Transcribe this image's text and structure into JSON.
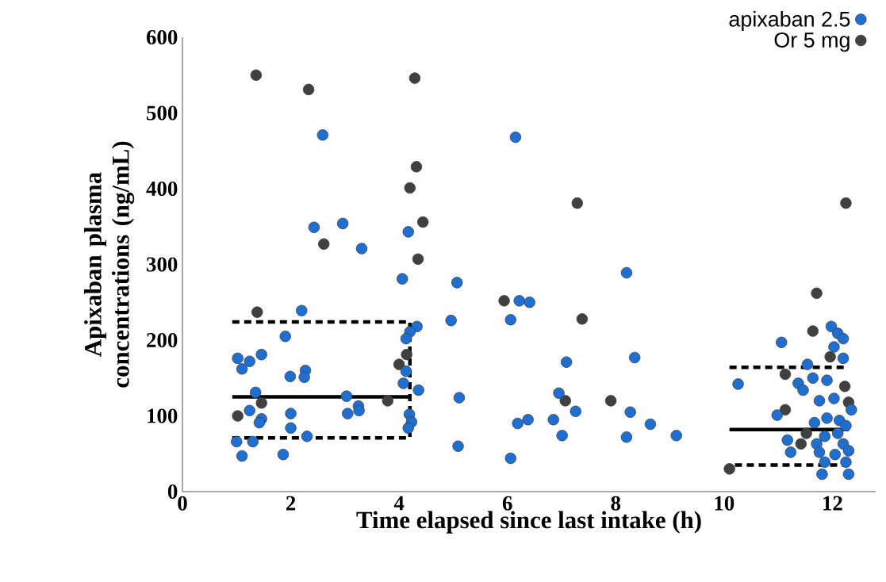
{
  "chart_data": {
    "type": "scatter",
    "xlabel": "Time elapsed since last intake (h)",
    "ylabel": "Apixaban plasma concentrations (ng/mL)",
    "xlim": [
      0,
      12.8
    ],
    "ylim": [
      0,
      600
    ],
    "xticks": [
      0,
      2,
      4,
      6,
      8,
      10,
      12
    ],
    "yticks": [
      0,
      100,
      200,
      300,
      400,
      500,
      600
    ],
    "grid": false,
    "legend": "top right",
    "series": [
      {
        "name": "Or 5 mg",
        "marker": "circle",
        "color": "#404040",
        "x": [
          1.36,
          2.33,
          4.29,
          4.32,
          4.2,
          2.61,
          4.44,
          4.35,
          1.38,
          4.14,
          4.0,
          3.79,
          1.46,
          1.02,
          5.94,
          7.29,
          7.38,
          7.07,
          7.91,
          10.1,
          12.25,
          11.71,
          11.64,
          11.96,
          11.13,
          12.23,
          12.3,
          11.13,
          11.52,
          11.42
        ],
        "values": [
          550,
          531,
          546,
          429,
          401,
          327,
          356,
          307,
          237,
          181,
          168,
          120,
          117,
          100,
          252,
          381,
          228,
          120,
          120,
          30,
          381,
          262,
          212,
          178,
          155,
          139,
          118,
          108,
          77,
          63
        ]
      },
      {
        "name": "apixaban 2.5",
        "marker": "circle",
        "color": "#1f6fd0",
        "x": [
          2.59,
          2.43,
          2.96,
          3.31,
          4.17,
          4.06,
          2.2,
          4.33,
          4.2,
          4.13,
          1.9,
          1.02,
          1.24,
          1.46,
          1.1,
          2.27,
          1.99,
          2.25,
          4.13,
          4.08,
          4.36,
          1.35,
          3.03,
          3.25,
          3.05,
          3.26,
          1.24,
          1.46,
          1.42,
          2.0,
          2.0,
          4.19,
          4.23,
          4.17,
          1.0,
          1.3,
          2.3,
          1.1,
          1.86,
          6.15,
          8.2,
          5.07,
          6.22,
          6.41,
          4.96,
          6.06,
          7.09,
          8.35,
          5.11,
          6.95,
          7.26,
          8.27,
          6.38,
          6.19,
          6.85,
          8.64,
          7.01,
          8.2,
          9.12,
          5.09,
          6.06,
          10.26,
          11.98,
          12.1,
          12.2,
          11.06,
          12.03,
          12.2,
          11.54,
          11.64,
          11.37,
          11.46,
          11.9,
          11.76,
          12.03,
          10.98,
          12.35,
          11.9,
          12.13,
          11.67,
          12.25,
          11.86,
          12.1,
          11.17,
          11.71,
          12.2,
          11.23,
          11.76,
          12.05,
          12.3,
          11.86,
          12.25,
          11.81,
          12.3
        ],
        "values": [
          471,
          349,
          354,
          321,
          343,
          281,
          239,
          218,
          211,
          202,
          205,
          176,
          172,
          181,
          162,
          160,
          152,
          151,
          159,
          143,
          134,
          131,
          126,
          113,
          103,
          107,
          107,
          96,
          91,
          103,
          84,
          102,
          92,
          84,
          66,
          66,
          73,
          47,
          49,
          468,
          289,
          276,
          252,
          250,
          226,
          227,
          171,
          177,
          124,
          130,
          106,
          105,
          95,
          90,
          95,
          89,
          74,
          72,
          74,
          60,
          44,
          142,
          218,
          209,
          202,
          197,
          191,
          176,
          168,
          150,
          143,
          134,
          147,
          120,
          123,
          101,
          108,
          97,
          94,
          91,
          87,
          73,
          77,
          68,
          63,
          63,
          52,
          52,
          49,
          54,
          39,
          39,
          23,
          23
        ]
      },
      {
        "type": "line",
        "marker": "none",
        "color": "#000000",
        "line_style": "dashed",
        "x": [
          0.92,
          4.2,
          4.2,
          0.92
        ],
        "values": [
          224,
          224,
          71,
          71
        ]
      },
      {
        "type": "line",
        "marker": "none",
        "color": "#000000",
        "line_style": "solid",
        "x": [
          0.92,
          4.2
        ],
        "values": [
          125,
          125
        ]
      },
      {
        "type": "line",
        "marker": "none",
        "color": "#000000",
        "line_style": "dashed",
        "x": [
          10.1,
          12.23
        ],
        "values": [
          164,
          164
        ]
      },
      {
        "type": "line",
        "marker": "none",
        "color": "#000000",
        "line_style": "solid",
        "x": [
          10.1,
          12.3
        ],
        "values": [
          82,
          82
        ]
      },
      {
        "type": "line",
        "marker": "none",
        "color": "#000000",
        "line_style": "dashed",
        "x": [
          10.2,
          12.3
        ],
        "values": [
          35,
          35
        ]
      }
    ]
  }
}
